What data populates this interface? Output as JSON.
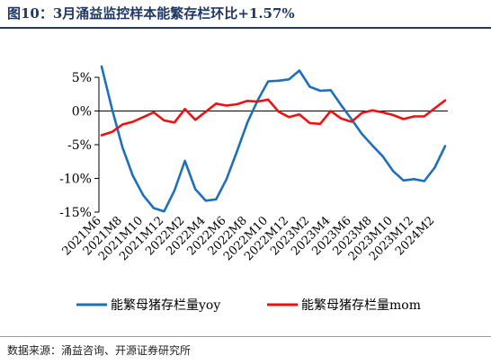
{
  "title": "图10：3月涌益监控样本能繁存栏环比+1.57%",
  "source": "数据来源：涌益咨询、开源证券研究所",
  "chart_data": {
    "type": "line",
    "title": "图10：3月涌益监控样本能繁存栏环比+1.57%",
    "xlabel": "",
    "ylabel": "",
    "ylim": [
      -15,
      5
    ],
    "yticks": [
      5,
      0,
      -5,
      -10,
      -15
    ],
    "ytick_labels": [
      "5%",
      "0%",
      "-5%",
      "-10%",
      "-15%"
    ],
    "grid": false,
    "legend_position": "bottom",
    "x": [
      "2021M6",
      "2021M7",
      "2021M8",
      "2021M9",
      "2021M10",
      "2021M11",
      "2021M12",
      "2022M1",
      "2022M2",
      "2022M3",
      "2022M4",
      "2022M5",
      "2022M6",
      "2022M7",
      "2022M8",
      "2022M9",
      "2022M10",
      "2022M11",
      "2022M12",
      "2023M1",
      "2023M2",
      "2023M3",
      "2023M4",
      "2023M5",
      "2023M6",
      "2023M7",
      "2023M8",
      "2023M9",
      "2023M10",
      "2023M11",
      "2023M12",
      "2024M1",
      "2024M2",
      "2024M3"
    ],
    "xtick_labels": [
      "2021M6",
      "2021M8",
      "2021M10",
      "2021M12",
      "2022M2",
      "2022M4",
      "2022M6",
      "2022M8",
      "2022M10",
      "2022M12",
      "2023M2",
      "2023M4",
      "2023M6",
      "2023M8",
      "2023M10",
      "2023M12",
      "2024M2"
    ],
    "series": [
      {
        "name": "能繁母猪存栏量yoy",
        "color": "#1f6fba",
        "values": [
          6.6,
          0.3,
          -5.4,
          -9.6,
          -12.5,
          -14.4,
          -14.9,
          -11.8,
          -7.4,
          -11.6,
          -13.3,
          -13.1,
          -10.1,
          -6.0,
          -1.7,
          1.6,
          4.4,
          4.5,
          4.7,
          6.0,
          3.6,
          3.0,
          3.1,
          0.9,
          -1.2,
          -3.4,
          -5.1,
          -6.7,
          -8.9,
          -10.3,
          -10.1,
          -10.4,
          -8.4,
          -5.2
        ]
      },
      {
        "name": "能繁母猪存栏量mom",
        "color": "#ee1111",
        "values": [
          -3.6,
          -3.1,
          -2.0,
          -1.6,
          -0.9,
          -0.2,
          -1.4,
          -1.7,
          0.3,
          -1.3,
          -0.1,
          1.1,
          0.8,
          1.0,
          1.5,
          1.4,
          1.7,
          -0.1,
          -0.9,
          -0.5,
          -1.8,
          -1.9,
          0.0,
          -1.1,
          -1.6,
          -0.3,
          0.1,
          -0.2,
          -0.6,
          -1.2,
          -0.8,
          -0.8,
          0.4,
          1.57
        ]
      }
    ]
  }
}
